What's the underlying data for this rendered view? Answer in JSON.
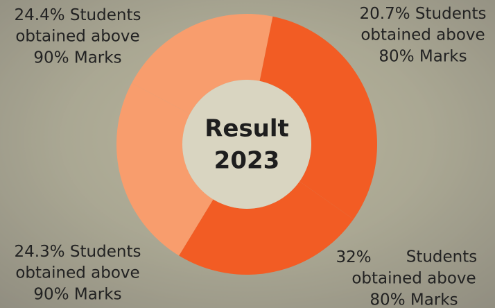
{
  "chart_data": {
    "type": "donut",
    "center_text": [
      "Result",
      "2023"
    ],
    "categories": [
      "top-right",
      "bottom-right",
      "bottom-left",
      "top-left"
    ],
    "values": [
      20.7,
      32,
      24.3,
      24.4
    ],
    "value_labels": [
      "20.7%",
      "32%",
      "24.3%",
      "24.4%"
    ],
    "colors": [
      "#f89d6d",
      "#f25c24",
      "#f25c24",
      "#f89d6d"
    ],
    "annotations": [
      [
        "Students",
        "obtained above",
        "80% Marks"
      ],
      [
        "Students",
        "obtained above",
        "80% Marks"
      ],
      [
        "Students",
        "obtained above",
        "90% Marks"
      ],
      [
        "Students",
        "obtained above",
        "90% Marks"
      ]
    ]
  }
}
